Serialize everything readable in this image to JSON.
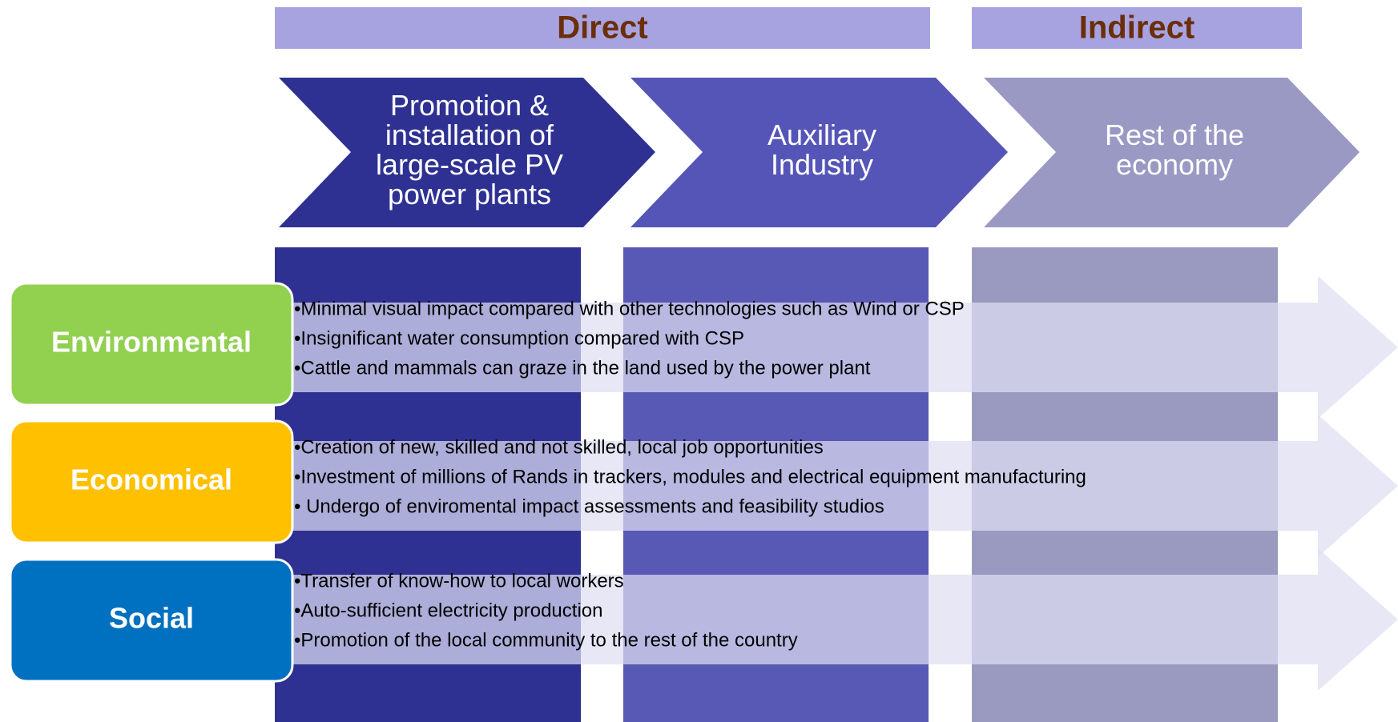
{
  "headers": [
    {
      "label": "Direct"
    },
    {
      "label": "Indirect"
    }
  ],
  "stages": [
    {
      "lines": [
        "Promotion &",
        "installation of",
        "large-scale PV",
        "power plants"
      ]
    },
    {
      "lines": [
        "Auxiliary",
        "Industry"
      ]
    },
    {
      "lines": [
        "Rest of the",
        "economy"
      ]
    }
  ],
  "rows": [
    {
      "label": "Environmental",
      "items": [
        "•Minimal visual impact compared with other technologies such as Wind or CSP",
        "•Insignificant water consumption compared with CSP",
        "•Cattle and mammals can graze in the land used by the power plant"
      ]
    },
    {
      "label": "Economical",
      "items": [
        "•Creation of new, skilled and not skilled, local job opportunities",
        "•Investment of millions of Rands in trackers, modules and electrical equipment manufacturing",
        "• Undergo of enviromental impact assessments and feasibility studios"
      ]
    },
    {
      "label": "Social",
      "items": [
        "•Transfer of know-how to local workers",
        "•Auto-sufficient electricity production",
        "•Promotion of the local community to the rest of the country"
      ]
    }
  ]
}
